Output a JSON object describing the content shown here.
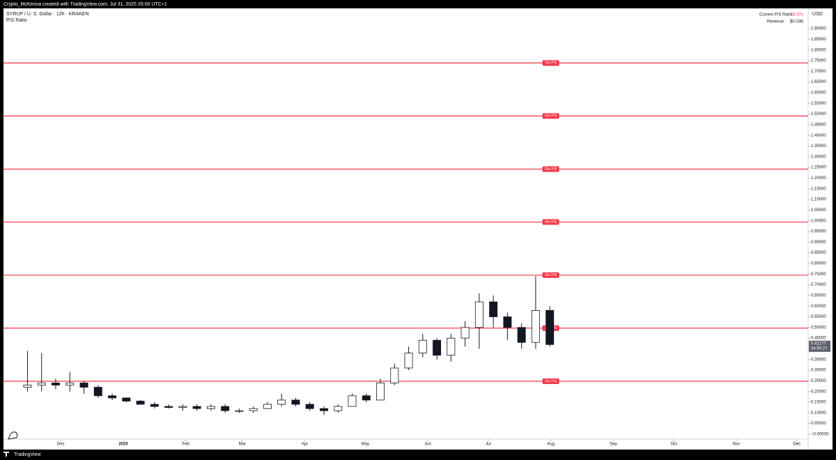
{
  "header": {
    "credit": "Crypto_McKenna created with TradingView.com, Jul 31, 2025 20:00 UTC+1"
  },
  "footer": {
    "brand": "TradingView"
  },
  "chart_data": {
    "type": "candlestick",
    "title": "SYRUP / U. S. Dollar · 12h · KRAKEN",
    "subtitle": "P/S Ratio",
    "info": {
      "ratio_label": "Current P/S Ratio:",
      "ratio_value": "16.97x",
      "revenue_label": "Revenue:",
      "revenue_value": "$0.03B"
    },
    "y_axis_label": "USD",
    "last_price": 0.42177,
    "countdown": "04:59:27",
    "categories": [
      null,
      null,
      null,
      null,
      null,
      null,
      null,
      null,
      null,
      null,
      null,
      null,
      null,
      null,
      null,
      null,
      null,
      null,
      null,
      null,
      null,
      null,
      null,
      null,
      null,
      null,
      null,
      null,
      null,
      null,
      null,
      null,
      null,
      null,
      null,
      null,
      null,
      null
    ],
    "open": [
      0.22,
      0.23,
      0.24,
      0.23,
      0.24,
      0.22,
      0.18,
      0.17,
      0.155,
      0.14,
      0.13,
      0.125,
      0.13,
      0.12,
      0.13,
      0.11,
      0.11,
      0.12,
      0.14,
      0.16,
      0.14,
      0.12,
      0.11,
      0.13,
      0.18,
      0.16,
      0.24,
      0.31,
      0.38,
      0.44,
      0.37,
      0.45,
      0.5,
      0.62,
      0.55,
      0.5,
      0.43,
      0.58
    ],
    "high": [
      0.39,
      0.38,
      0.26,
      0.29,
      0.25,
      0.23,
      0.19,
      0.17,
      0.16,
      0.15,
      0.14,
      0.14,
      0.14,
      0.14,
      0.14,
      0.12,
      0.13,
      0.15,
      0.19,
      0.17,
      0.15,
      0.13,
      0.14,
      0.19,
      0.19,
      0.26,
      0.33,
      0.41,
      0.47,
      0.45,
      0.47,
      0.53,
      0.66,
      0.65,
      0.57,
      0.52,
      0.74,
      0.6
    ],
    "low": [
      0.2,
      0.2,
      0.21,
      0.2,
      0.19,
      0.17,
      0.16,
      0.15,
      0.14,
      0.12,
      0.12,
      0.11,
      0.11,
      0.11,
      0.1,
      0.1,
      0.1,
      0.12,
      0.13,
      0.13,
      0.11,
      0.09,
      0.1,
      0.13,
      0.15,
      0.16,
      0.23,
      0.3,
      0.36,
      0.35,
      0.34,
      0.41,
      0.4,
      0.5,
      0.44,
      0.4,
      0.4,
      0.41
    ],
    "close": [
      0.23,
      0.24,
      0.23,
      0.24,
      0.22,
      0.18,
      0.17,
      0.155,
      0.14,
      0.13,
      0.125,
      0.13,
      0.12,
      0.13,
      0.11,
      0.11,
      0.12,
      0.14,
      0.16,
      0.14,
      0.12,
      0.11,
      0.13,
      0.18,
      0.16,
      0.24,
      0.31,
      0.38,
      0.44,
      0.37,
      0.45,
      0.5,
      0.62,
      0.55,
      0.5,
      0.43,
      0.58,
      0.42
    ],
    "up_color": "#ffffff",
    "down_color": "#131722",
    "wick_color": "#131722",
    "levels": [
      {
        "label": "10x P/S",
        "value": 0.248
      },
      {
        "label": "20x P/S",
        "value": 0.497
      },
      {
        "label": "30x P/S",
        "value": 0.745
      },
      {
        "label": "40x P/S",
        "value": 0.994
      },
      {
        "label": "50x P/S",
        "value": 1.242
      },
      {
        "label": "60x P/S",
        "value": 1.491
      },
      {
        "label": "70x P/S",
        "value": 1.739
      }
    ],
    "level_color": "#f23645",
    "xlim": [
      -1.7,
      55.3
    ],
    "xticks": [
      {
        "value": 2.36,
        "label": "Dec"
      },
      {
        "value": 6.79,
        "label": "2025"
      },
      {
        "value": 11.21,
        "label": "Feb"
      },
      {
        "value": 15.21,
        "label": "Mar"
      },
      {
        "value": 19.64,
        "label": "Apr"
      },
      {
        "value": 23.93,
        "label": "May"
      },
      {
        "value": 28.36,
        "label": "Jun"
      },
      {
        "value": 32.64,
        "label": "Jul"
      },
      {
        "value": 37.07,
        "label": "Aug"
      },
      {
        "value": 41.5,
        "label": "Sep"
      },
      {
        "value": 45.79,
        "label": "Oct"
      },
      {
        "value": 50.21,
        "label": "Nov"
      },
      {
        "value": 54.5,
        "label": "Dec"
      }
    ],
    "ylim": [
      -0.023,
      1.995
    ],
    "yticks": [
      {
        "value": 0,
        "label": "−0.00000"
      },
      {
        "value": 0.05,
        "label": "0.05000"
      },
      {
        "value": 0.1,
        "label": "0.10000"
      },
      {
        "value": 0.15,
        "label": "0.15000"
      },
      {
        "value": 0.2,
        "label": "0.20000"
      },
      {
        "value": 0.25,
        "label": "0.25000"
      },
      {
        "value": 0.3,
        "label": "0.30000"
      },
      {
        "value": 0.35,
        "label": "0.35000"
      },
      {
        "value": 0.45,
        "label": "0.45000"
      },
      {
        "value": 0.5,
        "label": "0.50000"
      },
      {
        "value": 0.55,
        "label": "0.55000"
      },
      {
        "value": 0.6,
        "label": "0.60000"
      },
      {
        "value": 0.65,
        "label": "0.65000"
      },
      {
        "value": 0.7,
        "label": "0.70000"
      },
      {
        "value": 0.75,
        "label": "0.75000"
      },
      {
        "value": 0.8,
        "label": "0.80000"
      },
      {
        "value": 0.85,
        "label": "0.85000"
      },
      {
        "value": 0.9,
        "label": "0.90000"
      },
      {
        "value": 0.95,
        "label": "0.95000"
      },
      {
        "value": 1.0,
        "label": "1.00000"
      },
      {
        "value": 1.05,
        "label": "1.05000"
      },
      {
        "value": 1.1,
        "label": "1.10000"
      },
      {
        "value": 1.15,
        "label": "1.15000"
      },
      {
        "value": 1.2,
        "label": "1.20000"
      },
      {
        "value": 1.25,
        "label": "1.25000"
      },
      {
        "value": 1.3,
        "label": "1.30000"
      },
      {
        "value": 1.35,
        "label": "1.35000"
      },
      {
        "value": 1.4,
        "label": "1.40000"
      },
      {
        "value": 1.45,
        "label": "1.45000"
      },
      {
        "value": 1.5,
        "label": "1.50000"
      },
      {
        "value": 1.55,
        "label": "1.55000"
      },
      {
        "value": 1.6,
        "label": "1.60000"
      },
      {
        "value": 1.65,
        "label": "1.65000"
      },
      {
        "value": 1.7,
        "label": "1.70000"
      },
      {
        "value": 1.75,
        "label": "1.75000"
      },
      {
        "value": 1.8,
        "label": "1.80000"
      },
      {
        "value": 1.85,
        "label": "1.85000"
      },
      {
        "value": 1.9,
        "label": "1.90000"
      }
    ]
  }
}
